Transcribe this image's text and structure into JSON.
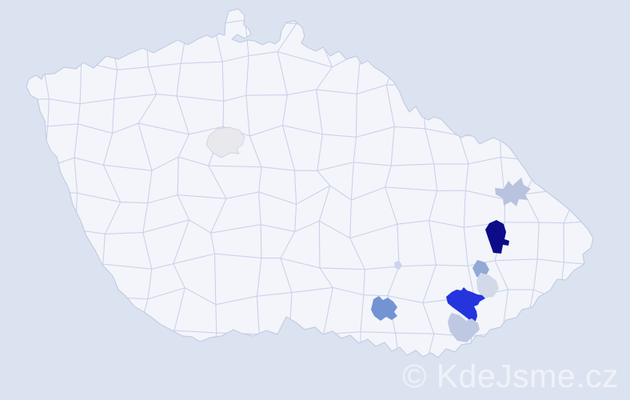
{
  "page": {
    "background": "#dce3f0"
  },
  "map": {
    "country": "Czech Republic",
    "sea_color": "#dce3f0",
    "land_color": "#f3f5fb",
    "district_border_color": "#cad1e8",
    "country_outline_color": "#c4cce2",
    "highlights": [
      {
        "name": "central-west-district-pale-gray",
        "color": "#e9e9ed",
        "intensity": "lowest"
      },
      {
        "name": "northeast-star-district",
        "color": "#b8c3dd",
        "intensity": "medium-low"
      },
      {
        "name": "east-district-dark-navy",
        "color": "#0c0c88",
        "intensity": "highest"
      },
      {
        "name": "east-central-district-medium-blue",
        "color": "#93a9d6",
        "intensity": "medium"
      },
      {
        "name": "east-central-district-pale-blue",
        "color": "#d3d9e8",
        "intensity": "low"
      },
      {
        "name": "southeast-district-bright-blue",
        "color": "#2534dd",
        "intensity": "high"
      },
      {
        "name": "southeast-district-light-blue",
        "color": "#bfc8e3",
        "intensity": "medium-low"
      },
      {
        "name": "south-central-district-steel-blue",
        "color": "#7294d3",
        "intensity": "medium"
      },
      {
        "name": "small-central-district-pale-blue",
        "color": "#ccd5ea",
        "intensity": "low"
      }
    ]
  },
  "watermark": {
    "text": "© KdeJsme.cz",
    "color": "#eff2f9"
  }
}
